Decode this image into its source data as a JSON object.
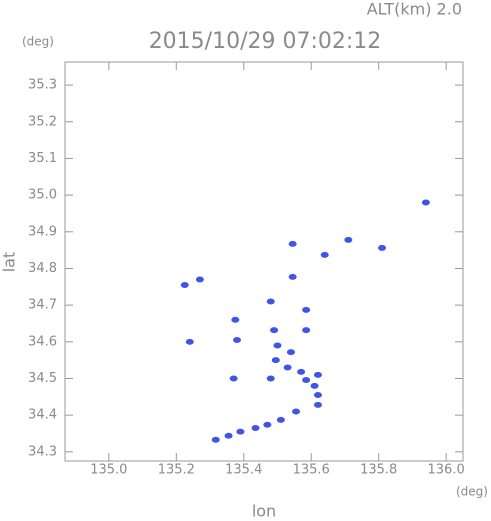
{
  "chart_data": {
    "type": "scatter",
    "header": "ALT(km) 2.0",
    "title": "2015/10/29 07:02:12",
    "y_unit": "(deg)",
    "x_unit": "(deg)",
    "xlabel": "lon",
    "ylabel": "lat",
    "color": "#3f55e6",
    "xlim": [
      134.87,
      136.05
    ],
    "ylim": [
      34.275,
      35.363
    ],
    "xticks": [
      {
        "value": 135.0,
        "label": "135.0"
      },
      135.2,
      135.4,
      135.6,
      135.8,
      {
        "value": 136.0,
        "label": "136.0"
      }
    ],
    "yticks": [
      34.3,
      34.4,
      34.5,
      34.6,
      34.7,
      34.8,
      34.9,
      {
        "value": 35.0,
        "label": "35.0"
      },
      35.1,
      35.2,
      35.3
    ],
    "x": [
      135.94,
      135.225,
      135.27,
      135.24,
      135.545,
      135.545,
      135.64,
      135.71,
      135.81,
      135.48,
      135.585,
      135.375,
      135.49,
      135.585,
      135.38,
      135.5,
      135.54,
      135.495,
      135.53,
      135.57,
      135.48,
      135.37,
      135.585,
      135.61,
      135.62,
      135.62,
      135.62,
      135.555,
      135.51,
      135.47,
      135.435,
      135.39,
      135.355,
      135.317
    ],
    "values": [
      34.98,
      34.755,
      34.77,
      34.6,
      34.867,
      34.777,
      34.837,
      34.878,
      34.856,
      34.71,
      34.687,
      34.66,
      34.632,
      34.632,
      34.605,
      34.59,
      34.572,
      34.55,
      34.53,
      34.518,
      34.5,
      34.5,
      34.496,
      34.48,
      34.51,
      34.455,
      34.428,
      34.41,
      34.387,
      34.374,
      34.365,
      34.355,
      34.344,
      34.333
    ]
  }
}
